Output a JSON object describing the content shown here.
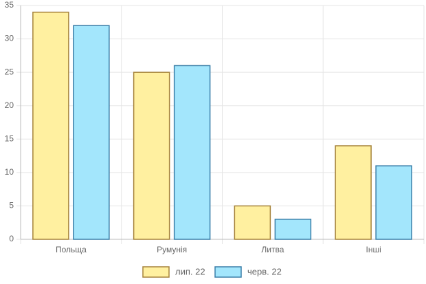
{
  "chart_data": {
    "type": "bar",
    "categories": [
      "Польща",
      "Румунія",
      "Литва",
      "Інші"
    ],
    "series": [
      {
        "name": "лип. 22",
        "color": "#fff0a0",
        "border": "#a5823a",
        "values": [
          34,
          25,
          5,
          14
        ]
      },
      {
        "name": "черв. 22",
        "color": "#a3e6fc",
        "border": "#3a7ea8",
        "values": [
          32,
          26,
          3,
          11
        ]
      }
    ],
    "ylim": [
      0,
      35
    ],
    "yticks": [
      0,
      5,
      10,
      15,
      20,
      25,
      30,
      35
    ],
    "grid": true,
    "legend": "bottom"
  }
}
